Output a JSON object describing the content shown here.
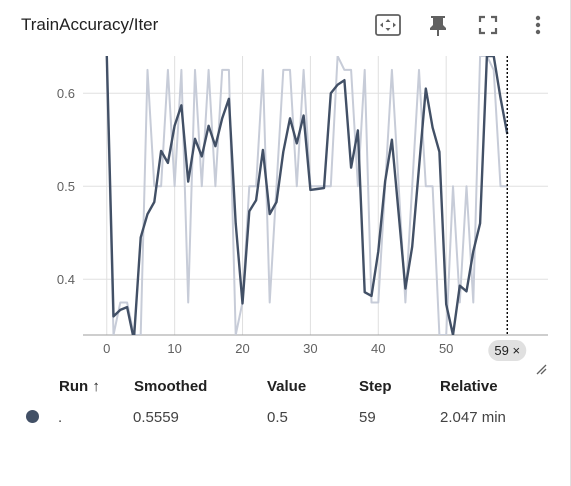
{
  "header": {
    "title": "TrainAccuracy/Iter",
    "tools": [
      "fit-domain-icon",
      "pin-icon",
      "fullscreen-icon",
      "more-vert-icon"
    ]
  },
  "colors": {
    "smoothed": "#425066",
    "raw": "#c7ccd8",
    "grid": "#e0e0e0",
    "axis_text": "#616161"
  },
  "chart_data": {
    "type": "line",
    "title": "TrainAccuracy/Iter",
    "xlabel": "",
    "ylabel": "",
    "xlim": [
      -3.5,
      65
    ],
    "ylim": [
      0.34,
      0.64
    ],
    "x_ticks": [
      0,
      10,
      20,
      30,
      40,
      50
    ],
    "y_ticks": [
      0.4,
      0.5,
      0.6
    ],
    "grid": true,
    "hover_step_label": "59 ×",
    "hover_step": 59,
    "series": [
      {
        "role": "raw",
        "x": [
          0,
          1,
          2,
          3,
          4,
          5,
          6,
          7,
          8,
          9,
          10,
          11,
          12,
          13,
          14,
          15,
          16,
          17,
          18,
          19,
          20,
          21,
          22,
          23,
          24,
          25,
          26,
          27,
          28,
          29,
          30,
          31,
          32,
          33,
          34,
          35,
          36,
          37,
          38,
          39,
          40,
          41,
          42,
          43,
          44,
          45,
          46,
          47,
          48,
          49,
          50,
          51,
          52,
          53,
          54,
          55,
          56,
          57,
          58,
          59
        ],
        "values": [
          0.625,
          0.34,
          0.375,
          0.375,
          0.34,
          0.34,
          0.625,
          0.5,
          0.5,
          0.625,
          0.5,
          0.625,
          0.375,
          0.625,
          0.5,
          0.625,
          0.5,
          0.625,
          0.625,
          0.34,
          0.375,
          0.5,
          0.5,
          0.625,
          0.375,
          0.5,
          0.625,
          0.625,
          0.5,
          0.625,
          0.5,
          0.5,
          0.5,
          0.5,
          0.64,
          0.625,
          0.625,
          0.5,
          0.625,
          0.375,
          0.375,
          0.5,
          0.625,
          0.5,
          0.375,
          0.5,
          0.625,
          0.5,
          0.5,
          0.34,
          0.34,
          0.5,
          0.375,
          0.5,
          0.375,
          0.64,
          0.64,
          0.625,
          0.5,
          0.5
        ]
      },
      {
        "role": "smoothed",
        "x": [
          0,
          1,
          2,
          3,
          4,
          5,
          6,
          7,
          8,
          9,
          10,
          11,
          12,
          13,
          14,
          15,
          16,
          17,
          18,
          19,
          20,
          21,
          22,
          23,
          24,
          25,
          26,
          27,
          28,
          29,
          30,
          31,
          32,
          33,
          34,
          35,
          36,
          37,
          38,
          39,
          40,
          41,
          42,
          43,
          44,
          45,
          46,
          47,
          48,
          49,
          50,
          51,
          52,
          53,
          54,
          55,
          56,
          57,
          58,
          59
        ],
        "values": [
          0.64,
          0.36,
          0.367,
          0.37,
          0.335,
          0.445,
          0.47,
          0.483,
          0.538,
          0.525,
          0.565,
          0.587,
          0.505,
          0.551,
          0.532,
          0.565,
          0.543,
          0.573,
          0.594,
          0.46,
          0.374,
          0.473,
          0.485,
          0.539,
          0.47,
          0.483,
          0.537,
          0.573,
          0.546,
          0.576,
          0.496,
          0.497,
          0.498,
          0.6,
          0.609,
          0.614,
          0.52,
          0.56,
          0.386,
          0.382,
          0.43,
          0.505,
          0.55,
          0.47,
          0.39,
          0.435,
          0.52,
          0.605,
          0.563,
          0.537,
          0.373,
          0.34,
          0.393,
          0.387,
          0.43,
          0.46,
          0.64,
          0.64,
          0.595,
          0.556
        ]
      }
    ]
  },
  "table": {
    "headers": {
      "run": "Run ↑",
      "smoothed": "Smoothed",
      "value": "Value",
      "step": "Step",
      "relative": "Relative"
    },
    "rows": [
      {
        "run": ".",
        "smoothed": "0.5559",
        "value": "0.5",
        "step": "59",
        "relative": "2.047 min",
        "color": "#425066"
      }
    ]
  }
}
